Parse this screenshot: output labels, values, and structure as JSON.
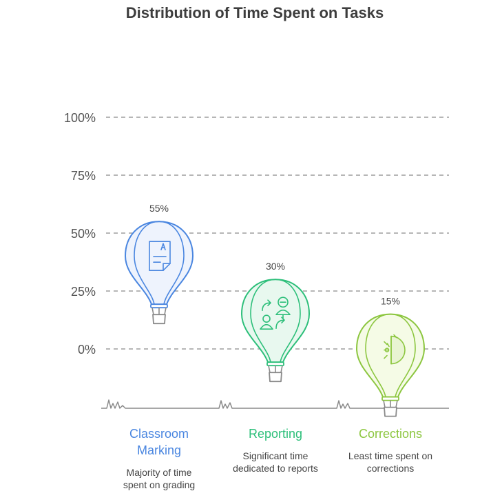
{
  "chart_data": {
    "type": "bar",
    "title": "Distribution of Time Spent on Tasks",
    "xlabel": "",
    "ylabel": "",
    "ylim": [
      0,
      100
    ],
    "y_ticks": [
      "100%",
      "75%",
      "50%",
      "25%",
      "0%"
    ],
    "y_tick_values": [
      100,
      75,
      50,
      25,
      0
    ],
    "grid": true,
    "categories": [
      "Classroom Marking",
      "Reporting",
      "Corrections"
    ],
    "values": [
      55,
      30,
      15
    ],
    "data_labels": [
      "55%",
      "30%",
      "15%"
    ],
    "descriptions": [
      "Majority of time spent on grading",
      "Significant time dedicated to reports",
      "Least time spent on corrections"
    ],
    "icons": [
      "document-icon",
      "people-exchange-icon",
      "stopwatch-icon"
    ],
    "colors": [
      "#4a86e0",
      "#2dbf7a",
      "#8cc63f"
    ],
    "fill_colors": [
      "#eef3fd",
      "#e8f8ef",
      "#f5fbe6"
    ]
  }
}
